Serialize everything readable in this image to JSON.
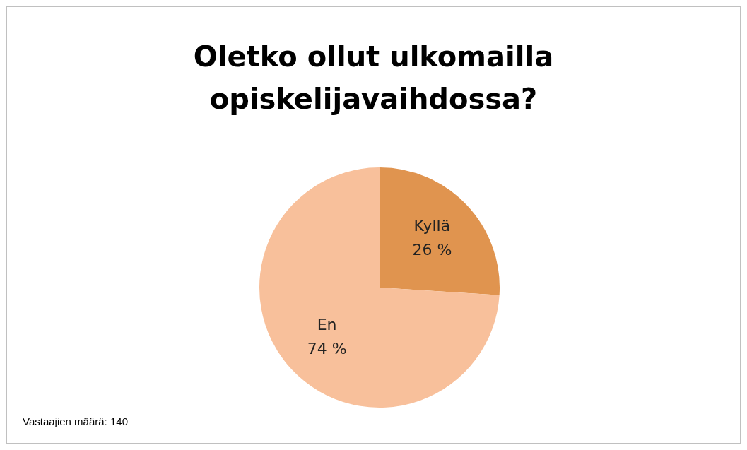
{
  "chart_data": {
    "type": "pie",
    "title": "Oletko ollut ulkomailla opiskelijavaihdossa?",
    "categories": [
      "Kyllä",
      "En"
    ],
    "values": [
      26,
      74
    ],
    "colors": [
      "#e0944f",
      "#f8c09b"
    ],
    "value_labels": [
      "26 %",
      "74 %"
    ],
    "annotations": [
      "Vastaajien määrä: 140"
    ],
    "legend": false
  }
}
